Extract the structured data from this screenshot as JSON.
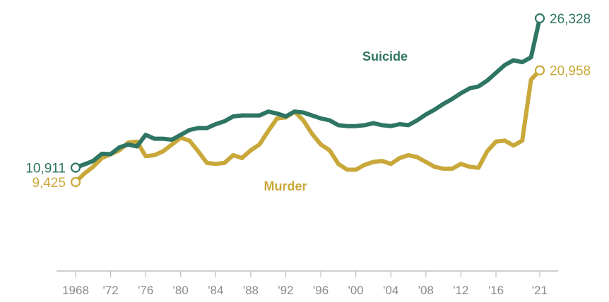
{
  "chart_data": {
    "type": "line",
    "xlabel": "",
    "ylabel": "",
    "ylim": [
      5000,
      28000
    ],
    "x_range": [
      1968,
      2021
    ],
    "x_tick_labels": [
      "1968",
      "'72",
      "'76",
      "'80",
      "'84",
      "'88",
      "'92",
      "'96",
      "'00",
      "'04",
      "'08",
      "'12",
      "'16",
      "'21"
    ],
    "x_tick_years": [
      1968,
      1972,
      1976,
      1980,
      1984,
      1988,
      1992,
      1996,
      2000,
      2004,
      2008,
      2012,
      2016,
      2021
    ],
    "grid": false,
    "legend": "direct labels on lines",
    "x": [
      1968,
      1969,
      1970,
      1971,
      1972,
      1973,
      1974,
      1975,
      1976,
      1977,
      1978,
      1979,
      1980,
      1981,
      1982,
      1983,
      1984,
      1985,
      1986,
      1987,
      1988,
      1989,
      1990,
      1991,
      1992,
      1993,
      1994,
      1995,
      1996,
      1997,
      1998,
      1999,
      2000,
      2001,
      2002,
      2003,
      2004,
      2005,
      2006,
      2007,
      2008,
      2009,
      2010,
      2011,
      2012,
      2013,
      2014,
      2015,
      2016,
      2017,
      2018,
      2019,
      2020,
      2021
    ],
    "series": [
      {
        "name": "Suicide",
        "color": "#2e7563",
        "start_label": "10,911",
        "end_label": "26,328",
        "values": [
          10911,
          11250,
          11600,
          12350,
          12300,
          13000,
          13300,
          13100,
          14300,
          13900,
          13900,
          13800,
          14300,
          14800,
          15000,
          15000,
          15400,
          15700,
          16200,
          16300,
          16300,
          16300,
          16700,
          16500,
          16200,
          16700,
          16600,
          16300,
          16000,
          15800,
          15300,
          15200,
          15200,
          15300,
          15500,
          15300,
          15200,
          15400,
          15300,
          15800,
          16400,
          16900,
          17500,
          18000,
          18600,
          19100,
          19300,
          19900,
          20700,
          21500,
          22000,
          21800,
          22300,
          26328
        ]
      },
      {
        "name": "Murder",
        "color": "#c9a83a",
        "start_label": "9,425",
        "end_label": "20,958",
        "values": [
          9425,
          10300,
          11000,
          11900,
          12300,
          12700,
          13500,
          13600,
          12100,
          12200,
          12600,
          13300,
          14000,
          13700,
          12600,
          11400,
          11300,
          11400,
          12200,
          11900,
          12700,
          13300,
          14700,
          16000,
          16100,
          16700,
          15800,
          14400,
          13300,
          12700,
          11300,
          10700,
          10700,
          11200,
          11500,
          11600,
          11300,
          11900,
          12200,
          12000,
          11500,
          11000,
          10800,
          10800,
          11300,
          11000,
          10900,
          12600,
          13600,
          13700,
          13200,
          13700,
          20000,
          20958
        ]
      }
    ]
  }
}
